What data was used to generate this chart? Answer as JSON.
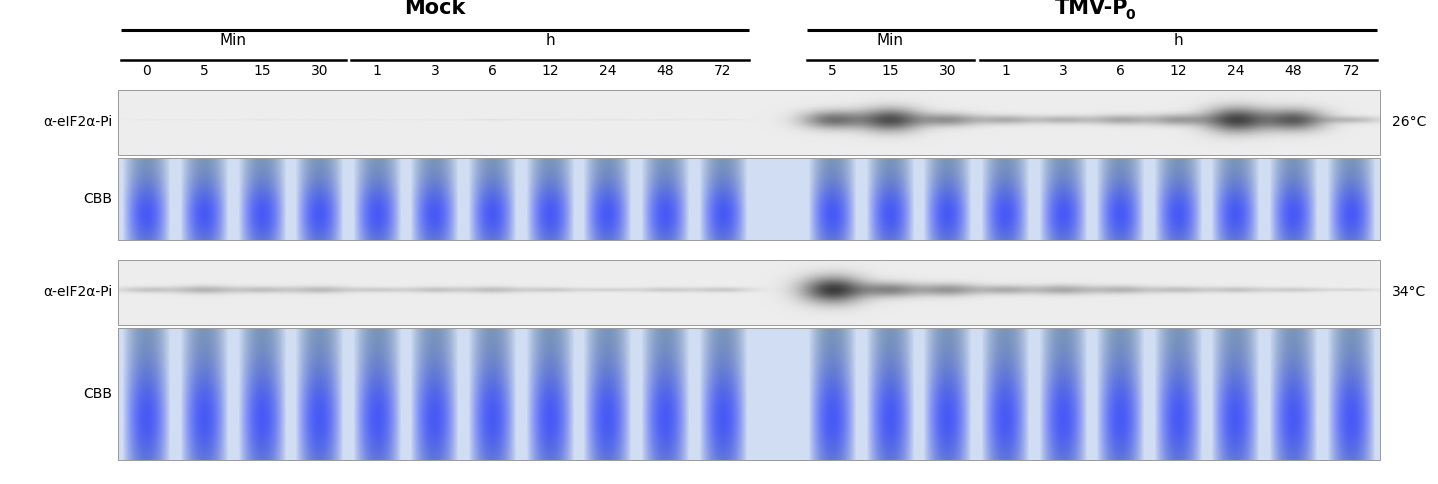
{
  "title_mock": "Mock",
  "title_tmv": "TMV-P",
  "title_tmv_sub": "0",
  "label_min": "Min",
  "label_h": "h",
  "mock_min_labels": [
    "0",
    "5",
    "15",
    "30"
  ],
  "mock_h_labels": [
    "1",
    "3",
    "6",
    "12",
    "24",
    "48",
    "72"
  ],
  "tmv_min_labels": [
    "5",
    "15",
    "30"
  ],
  "tmv_h_labels": [
    "1",
    "3",
    "6",
    "12",
    "24",
    "48",
    "72"
  ],
  "row_labels_left": [
    "α-eIF2α-Pi",
    "CBB",
    "α-eIF2α-Pi",
    "CBB"
  ],
  "temp_labels": [
    "26°C",
    "34°C"
  ],
  "bg_color": "#ffffff",
  "mock_26_blot": [
    0.02,
    0.02,
    0.03,
    0.02,
    0.02,
    0.02,
    0.05,
    0.03,
    0.04,
    0.03,
    0.03
  ],
  "tmv_26_blot": [
    0.55,
    0.7,
    0.4,
    0.28,
    0.25,
    0.3,
    0.35,
    0.75,
    0.65,
    0.22
  ],
  "mock_34_blot": [
    0.18,
    0.25,
    0.2,
    0.22,
    0.15,
    0.18,
    0.2,
    0.15,
    0.12,
    0.15,
    0.16
  ],
  "tmv_34_blot": [
    0.8,
    0.45,
    0.38,
    0.28,
    0.3,
    0.25,
    0.2,
    0.18,
    0.15,
    0.1
  ]
}
